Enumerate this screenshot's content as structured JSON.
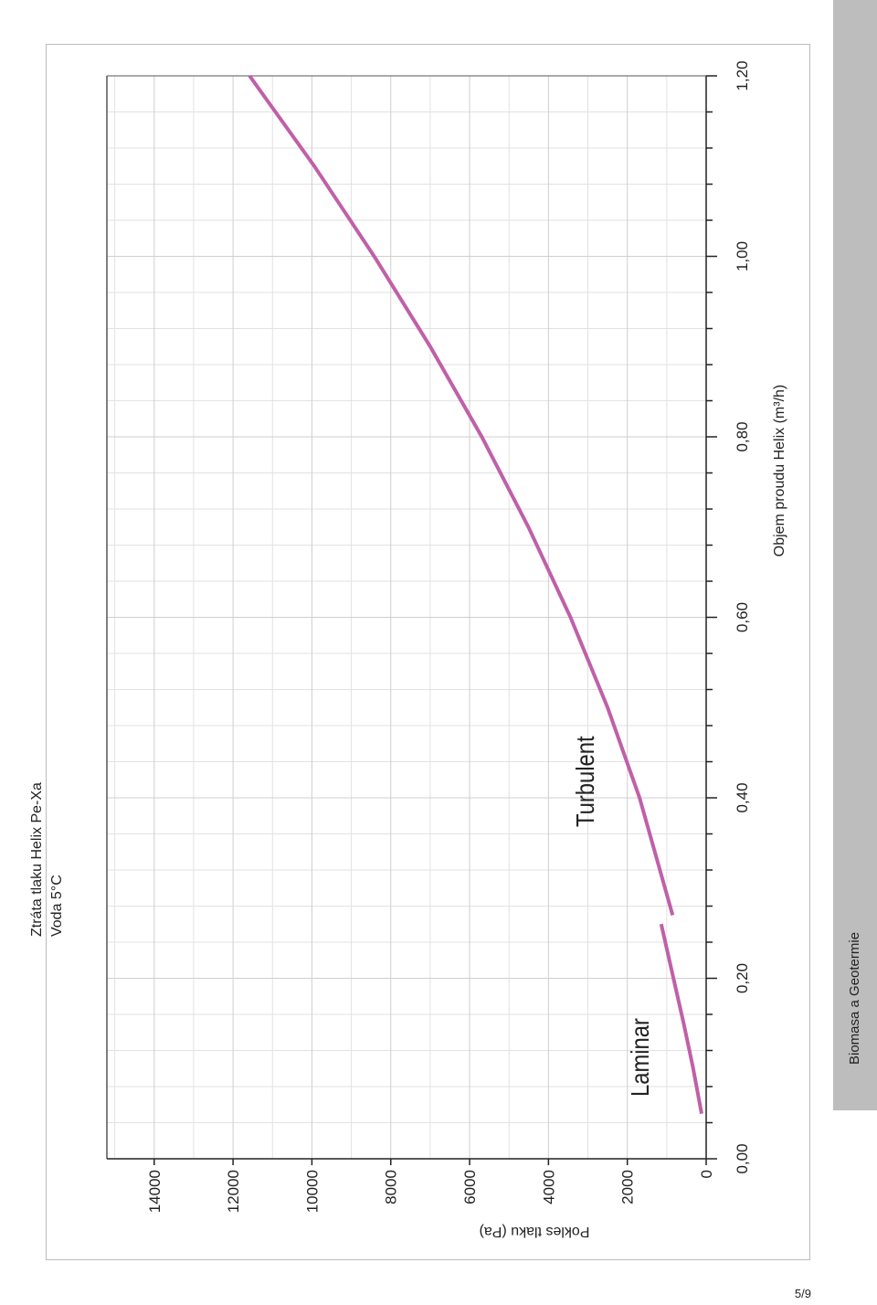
{
  "chart_data": {
    "type": "line",
    "title": "Ztráta tlaku Helix Pe-Xa",
    "subtitle": "Voda 5°C",
    "x_label": "Objem proudu Helix (m³/h)",
    "y_label": "Pokles tlaku (Pa)",
    "xlim": [
      0,
      1.2
    ],
    "xticks": [
      {
        "value": 0,
        "label": "0,00"
      },
      {
        "value": 0.2,
        "label": "0,20"
      },
      {
        "value": 0.4,
        "label": "0,40"
      },
      {
        "value": 0.6,
        "label": "0,60"
      },
      {
        "value": 0.8,
        "label": "0,80"
      },
      {
        "value": 1.0,
        "label": "1,00"
      },
      {
        "value": 1.2,
        "label": "1,20"
      }
    ],
    "ylim": [
      0,
      15200
    ],
    "yticks": [
      0,
      2000,
      4000,
      6000,
      8000,
      10000,
      12000,
      14000
    ],
    "grid": true,
    "series": [
      {
        "name": "Laminar",
        "color": "#c060a8",
        "x": [
          0.05,
          0.1,
          0.15,
          0.2,
          0.26
        ],
        "values": [
          116,
          330,
          570,
          830,
          1140
        ]
      },
      {
        "name": "Turbulent",
        "color": "#c060a8",
        "x": [
          0.27,
          0.4,
          0.5,
          0.6,
          0.7,
          0.8,
          0.9,
          1.0,
          1.1,
          1.2
        ],
        "values": [
          850,
          1690,
          2500,
          3440,
          4510,
          5690,
          7000,
          8420,
          9940,
          11580
        ]
      }
    ]
  },
  "sidebar": "Biomasa a Geotermie",
  "page_number": "5/9"
}
